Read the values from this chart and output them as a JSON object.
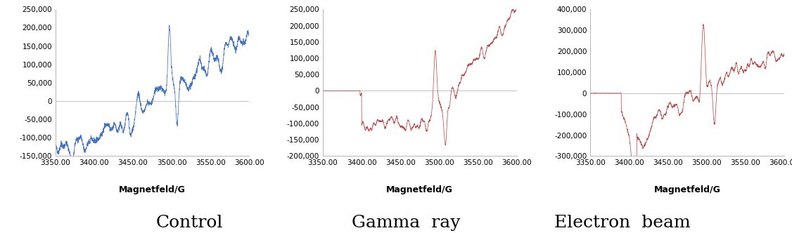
{
  "panels": [
    {
      "title": "Control",
      "color": "#4472C4",
      "xlabel": "Magnetfeld/G",
      "xlim": [
        3350,
        3600
      ],
      "xticks": [
        3350.0,
        3400.0,
        3450.0,
        3500.0,
        3550.0,
        3600.0
      ],
      "ylim": [
        -150000,
        250000
      ],
      "yticks": [
        -150000,
        -100000,
        -50000,
        0,
        50000,
        100000,
        150000,
        200000,
        250000
      ],
      "ytick_labels": [
        "-150,000",
        "-100,000",
        "-50,000",
        "0",
        "50,000",
        "100,000",
        "150,000",
        "200,000",
        "250,000"
      ]
    },
    {
      "title": "Gamma  ray",
      "color": "#C0504D",
      "xlabel": "Magnetfeld/G",
      "xlim": [
        3350,
        3600
      ],
      "xticks": [
        3350.0,
        3400.0,
        3450.0,
        3500.0,
        3550.0,
        3600.0
      ],
      "ylim": [
        -200000,
        250000
      ],
      "yticks": [
        -200000,
        -150000,
        -100000,
        -50000,
        0,
        50000,
        100000,
        150000,
        200000,
        250000
      ],
      "ytick_labels": [
        "-200,000",
        "-150,000",
        "-100,000",
        "-50,000",
        "0",
        "50,000",
        "100,000",
        "150,000",
        "200,000",
        "250,000"
      ]
    },
    {
      "title": "Electron  beam",
      "color": "#C0504D",
      "xlabel": "Magnetfeld/G",
      "xlim": [
        3350,
        3600
      ],
      "xticks": [
        3350.0,
        3400.0,
        3450.0,
        3500.0,
        3550.0,
        3600.0
      ],
      "ylim": [
        -300000,
        400000
      ],
      "yticks": [
        -300000,
        -200000,
        -100000,
        0,
        100000,
        200000,
        300000,
        400000
      ],
      "ytick_labels": [
        "-300,000",
        "-200,000",
        "-100,000",
        "0",
        "100,000",
        "200,000",
        "300,000",
        "400,000"
      ]
    }
  ],
  "background_color": "#ffffff",
  "title_fontsize": 18,
  "xlabel_fontsize": 9,
  "tick_fontsize": 7.5
}
